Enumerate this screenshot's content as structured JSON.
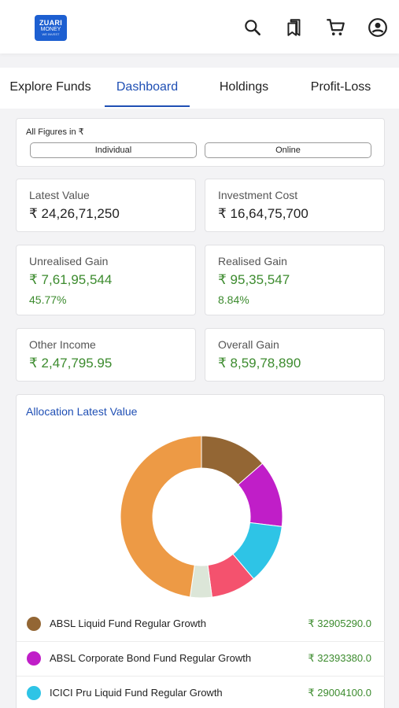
{
  "header": {
    "logo": {
      "line1": "ZUARI",
      "line2": "MONEY",
      "line3": "WE INVEST"
    },
    "icons": [
      "search-icon",
      "bookmark-icon",
      "cart-icon",
      "profile-icon"
    ]
  },
  "tabs": [
    {
      "label": "Explore Funds",
      "active": false
    },
    {
      "label": "Dashboard",
      "active": true
    },
    {
      "label": "Holdings",
      "active": false
    },
    {
      "label": "Profit-Loss",
      "active": false
    }
  ],
  "filters": {
    "figures_label": "All Figures in ₹",
    "individual": "Individual",
    "online": "Online"
  },
  "stats": {
    "latest_value": {
      "label": "Latest Value",
      "value": "₹ 24,26,71,250"
    },
    "investment_cost": {
      "label": "Investment Cost",
      "value": "₹ 16,64,75,700"
    },
    "unrealised_gain": {
      "label": "Unrealised Gain",
      "value": "₹ 7,61,95,544",
      "percent": "45.77%"
    },
    "realised_gain": {
      "label": "Realised Gain",
      "value": "₹ 95,35,547",
      "percent": "8.84%"
    },
    "other_income": {
      "label": "Other Income",
      "value": "₹ 2,47,795.95"
    },
    "overall_gain": {
      "label": "Overall Gain",
      "value": "₹ 8,59,78,890"
    }
  },
  "allocation": {
    "title": "Allocation Latest Value",
    "legend": [
      {
        "name": "ABSL Liquid Fund Regular Growth",
        "amount": "₹ 32905290.0",
        "color": "#936634"
      },
      {
        "name": "ABSL Corporate Bond Fund Regular Growth",
        "amount": "₹ 32393380.0",
        "color": "#c01ec8"
      },
      {
        "name": "ICICI Pru Liquid Fund Regular Growth",
        "amount": "₹ 29004100.0",
        "color": "#2ec4e6"
      }
    ]
  },
  "chart_data": {
    "type": "pie",
    "title": "Allocation Latest Value",
    "slices": [
      {
        "label": "ABSL Liquid Fund Regular Growth",
        "value": 32905290.0,
        "color": "#936634"
      },
      {
        "label": "ABSL Corporate Bond Fund Regular Growth",
        "value": 32393380.0,
        "color": "#c01ec8"
      },
      {
        "label": "ICICI Pru Liquid Fund Regular Growth",
        "value": 29004100.0,
        "color": "#2ec4e6"
      },
      {
        "label": "",
        "value": 22000000,
        "color": "#f4526e"
      },
      {
        "label": "",
        "value": 10500000,
        "color": "#dce6d8"
      },
      {
        "label": "",
        "value": 115870000,
        "color": "#ed9a45"
      }
    ]
  }
}
